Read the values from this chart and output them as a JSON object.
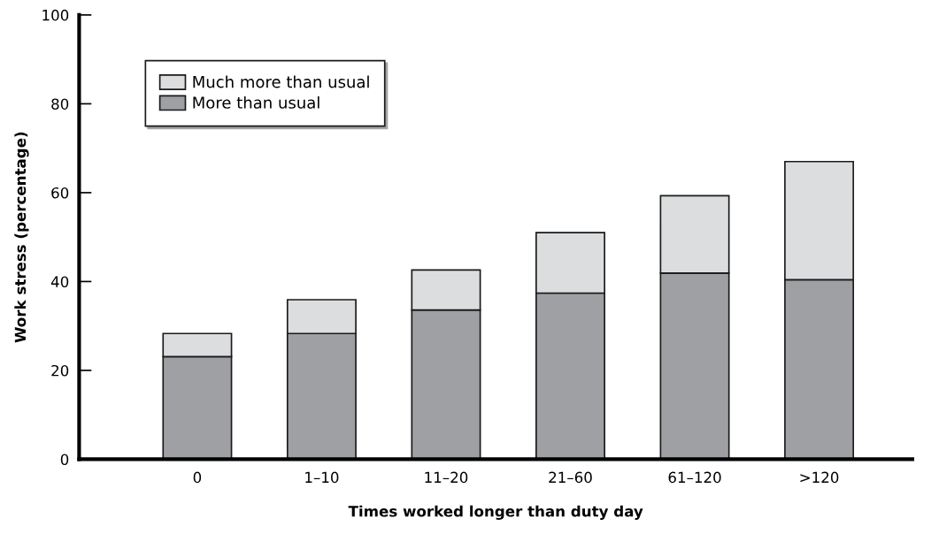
{
  "chart_data": {
    "type": "bar",
    "stacked": true,
    "xlabel": "Times worked longer than duty day",
    "ylabel": "Work stress (percentage)",
    "categories": [
      "0",
      "1–10",
      "11–20",
      "21–60",
      "61–120",
      ">120"
    ],
    "series": [
      {
        "name": "More than usual",
        "color": "#9fa0a3",
        "values": [
          23.1,
          28.3,
          33.6,
          37.4,
          41.9,
          40.4
        ]
      },
      {
        "name": "Much more than usual",
        "color": "#dcdddf",
        "values": [
          5.2,
          7.6,
          9.0,
          13.6,
          17.4,
          26.6
        ]
      }
    ],
    "ylim": [
      0,
      100
    ],
    "yticks": [
      0,
      20,
      40,
      60,
      80,
      100
    ],
    "grid": false,
    "legend": "top left"
  }
}
